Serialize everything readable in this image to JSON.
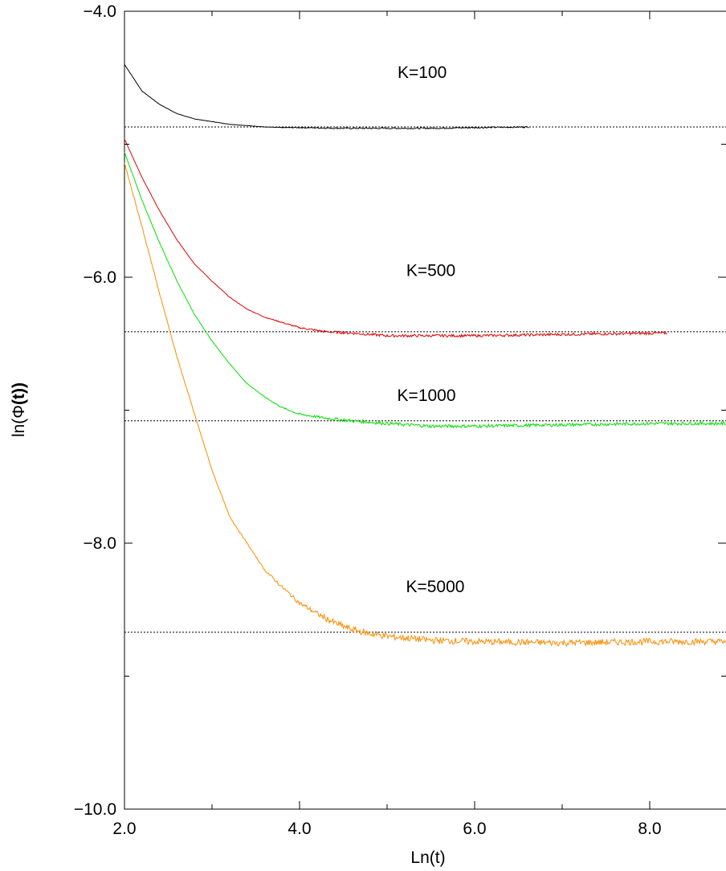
{
  "chart_data": {
    "type": "line",
    "xlabel": "Ln(t)",
    "ylabel_prefix": "ln(",
    "ylabel_symbol": "Φ",
    "ylabel_bold": "(t))",
    "xlim": [
      2.0,
      8.9
    ],
    "ylim": [
      -10.0,
      -4.0
    ],
    "x_ticks": [
      2.0,
      4.0,
      6.0,
      8.0
    ],
    "x_tick_labels": [
      "2.0",
      "4.0",
      "6.0",
      "8.0"
    ],
    "y_ticks": [
      -10.0,
      -8.0,
      -6.0,
      -4.0
    ],
    "y_tick_labels": [
      "−10.0",
      "−8.0",
      "−6.0",
      "−4.0"
    ],
    "y_minor_ticks": [
      -9.0,
      -7.0,
      -5.0
    ],
    "x_minor_ticks": [
      3.0,
      5.0,
      7.0
    ],
    "grid": false,
    "series": [
      {
        "name": "K=100",
        "color": "#000000",
        "x_end": 6.62,
        "x": [
          2.0,
          2.2,
          2.4,
          2.6,
          2.8,
          3.0,
          3.2,
          3.4,
          3.6,
          3.8,
          4.0,
          4.5,
          5.0,
          5.5,
          6.0,
          6.62
        ],
        "y": [
          -4.4,
          -4.6,
          -4.7,
          -4.77,
          -4.81,
          -4.83,
          -4.85,
          -4.86,
          -4.87,
          -4.875,
          -4.875,
          -4.88,
          -4.88,
          -4.88,
          -4.875,
          -4.87
        ],
        "plateau": -4.87,
        "noise": 0.005
      },
      {
        "name": "K=500",
        "color": "#e00000",
        "x": [
          2.0,
          2.2,
          2.4,
          2.6,
          2.8,
          3.0,
          3.2,
          3.4,
          3.6,
          3.8,
          4.0,
          4.3,
          4.6,
          5.0,
          5.5,
          6.0,
          7.0,
          8.2
        ],
        "y": [
          -4.96,
          -5.25,
          -5.5,
          -5.72,
          -5.9,
          -6.03,
          -6.15,
          -6.24,
          -6.3,
          -6.34,
          -6.38,
          -6.41,
          -6.42,
          -6.44,
          -6.44,
          -6.44,
          -6.43,
          -6.42
        ],
        "plateau": -6.42,
        "noise": 0.01
      },
      {
        "name": "K=1000",
        "color": "#00e000",
        "x": [
          2.0,
          2.2,
          2.4,
          2.6,
          2.8,
          3.0,
          3.2,
          3.4,
          3.6,
          3.8,
          4.0,
          4.3,
          4.6,
          5.0,
          5.5,
          6.0,
          7.0,
          8.0,
          8.9
        ],
        "y": [
          -5.06,
          -5.42,
          -5.74,
          -6.03,
          -6.28,
          -6.48,
          -6.65,
          -6.8,
          -6.9,
          -6.98,
          -7.03,
          -7.06,
          -7.08,
          -7.1,
          -7.12,
          -7.12,
          -7.11,
          -7.1,
          -7.1
        ],
        "plateau": -7.1,
        "noise": 0.012
      },
      {
        "name": "K=5000",
        "color": "#ff8c00",
        "x": [
          2.0,
          2.2,
          2.4,
          2.6,
          2.8,
          3.0,
          3.2,
          3.4,
          3.6,
          3.8,
          4.0,
          4.2,
          4.4,
          4.6,
          4.8,
          5.0,
          5.5,
          6.0,
          7.0,
          8.0,
          8.9
        ],
        "y": [
          -5.14,
          -5.62,
          -6.12,
          -6.6,
          -7.03,
          -7.45,
          -7.8,
          -8.0,
          -8.2,
          -8.33,
          -8.45,
          -8.53,
          -8.6,
          -8.65,
          -8.68,
          -8.7,
          -8.73,
          -8.74,
          -8.75,
          -8.74,
          -8.74
        ],
        "plateau": -8.74,
        "noise": 0.025
      }
    ],
    "reference_lines": [
      -4.87,
      -6.41,
      -7.08,
      -8.67
    ],
    "annotations": [
      {
        "text": "K=100",
        "x": 5.4,
        "y": -4.5
      },
      {
        "text": "K=500",
        "x": 5.5,
        "y": -5.99
      },
      {
        "text": "K=1000",
        "x": 5.45,
        "y": -6.93
      },
      {
        "text": "K=5000",
        "x": 5.55,
        "y": -8.37
      }
    ]
  }
}
